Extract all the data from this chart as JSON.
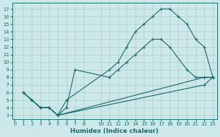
{
  "xlabel": "Humidex (Indice chaleur)",
  "bg_color": "#cce8e8",
  "line_color": "#1a6b6b",
  "grid_color": "#aacccc",
  "line1_x": [
    1,
    2,
    3,
    4,
    5,
    6,
    7,
    11,
    12,
    13,
    14,
    15,
    16,
    17,
    18,
    20,
    21,
    22,
    23
  ],
  "line1_y": [
    6,
    5,
    4,
    4,
    3,
    4,
    9,
    8,
    9,
    10,
    11,
    12,
    13,
    13,
    12,
    9,
    8,
    8,
    8
  ],
  "line2_x": [
    1,
    2,
    3,
    4,
    5,
    6,
    11,
    12,
    13,
    14,
    15,
    16,
    17,
    18,
    19,
    20,
    21,
    22,
    23
  ],
  "line2_y": [
    6,
    5,
    4,
    4,
    3,
    5,
    9,
    10,
    12,
    14,
    15,
    16,
    17,
    17,
    16,
    15,
    13,
    12,
    8
  ],
  "line3_x": [
    1,
    2,
    3,
    4,
    5,
    22,
    23
  ],
  "line3_y": [
    6,
    5,
    4,
    4,
    3,
    8,
    8
  ],
  "line4_x": [
    1,
    2,
    3,
    4,
    5,
    22,
    23
  ],
  "line4_y": [
    6,
    5,
    4,
    4,
    3,
    7,
    8
  ],
  "xticks": [
    0,
    1,
    2,
    3,
    4,
    5,
    6,
    7,
    8,
    10,
    11,
    12,
    13,
    14,
    15,
    16,
    17,
    18,
    19,
    20,
    21,
    22,
    23
  ],
  "yticks": [
    3,
    4,
    5,
    6,
    7,
    8,
    9,
    10,
    11,
    12,
    13,
    14,
    15,
    16,
    17
  ],
  "xlim": [
    -0.3,
    23.5
  ],
  "ylim": [
    2.5,
    17.8
  ],
  "label_fontsize": 6.5,
  "tick_fontsize": 5.2
}
